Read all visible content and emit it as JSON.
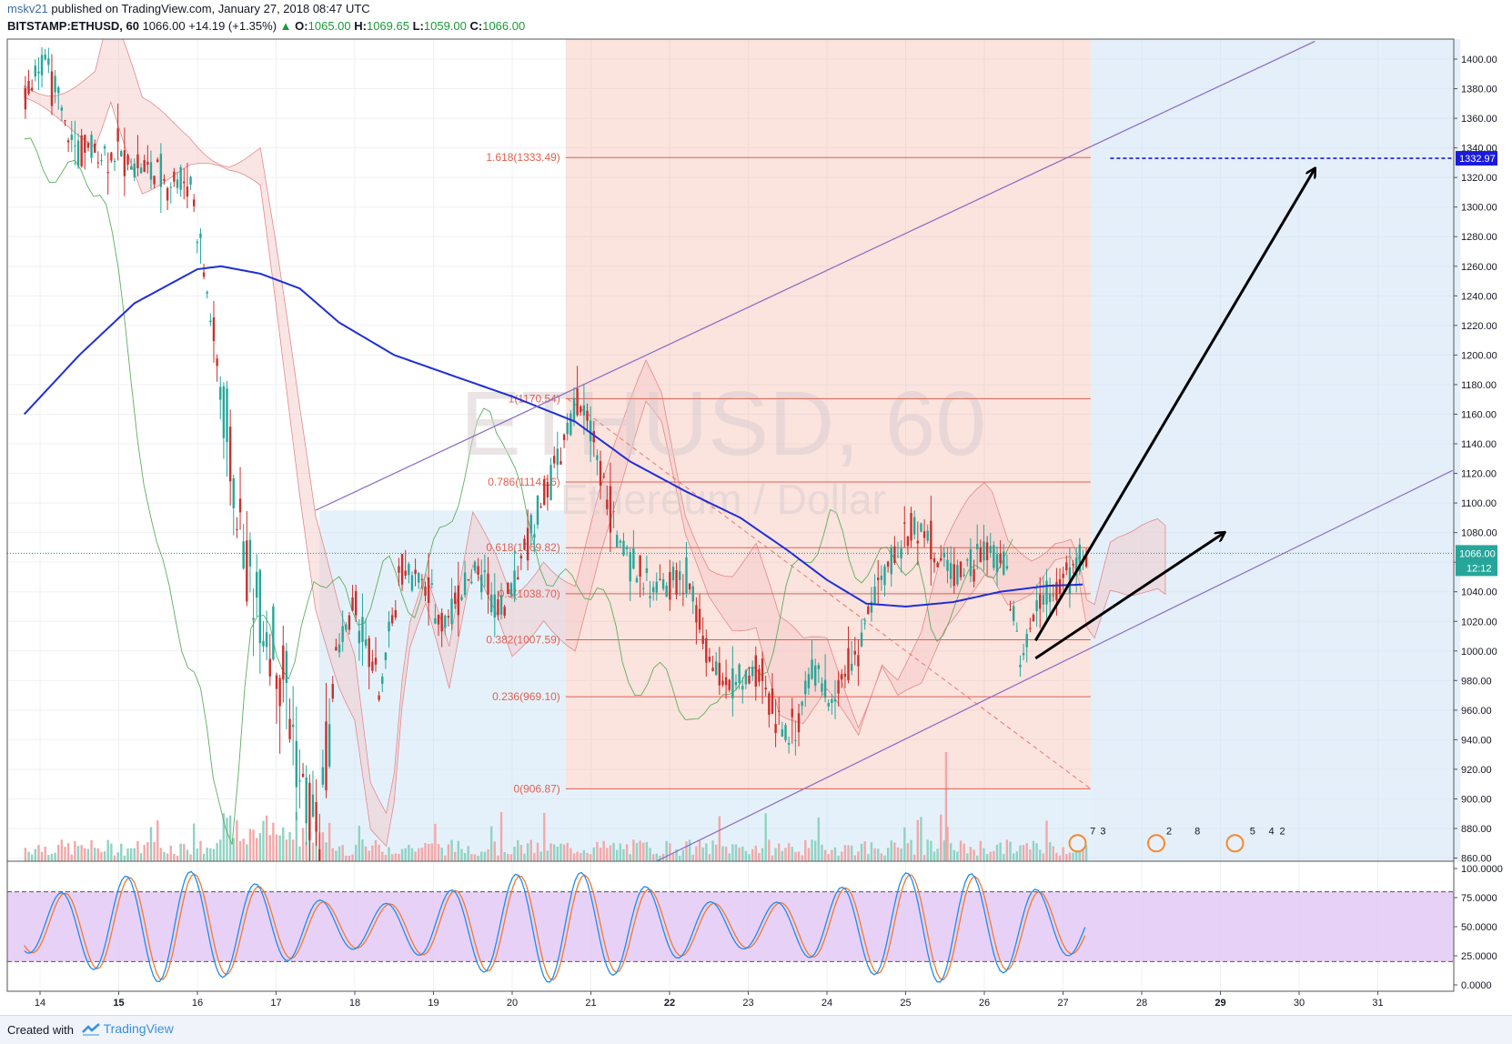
{
  "header": {
    "user": "mskv21",
    "published_text": "published on TradingView.com, January 27, 2018 08:47 UTC",
    "symbol": "BITSTAMP:ETHUSD, 60",
    "last_price": "1066.00",
    "change": "+14.19 (+1.35%)",
    "open_label": "O:",
    "open": "1065.00",
    "high_label": "H:",
    "high": "1069.65",
    "low_label": "L:",
    "low": "1059.00",
    "close_label": "C:",
    "close": "1066.00"
  },
  "watermark": {
    "line1": "ETHUSD, 60",
    "line2": "Ethereum / Dollar"
  },
  "footer": {
    "created_with": "Created with",
    "brand": "TradingView"
  },
  "colors": {
    "up": "#26a69a",
    "down": "#c9302c",
    "ma": "#1f2fd6",
    "fib": "#e06050",
    "channel": "#8c6bc2",
    "stoch_k": "#1e8cf0",
    "stoch_d": "#f07a30",
    "stoch_band": "#e4c9f5"
  },
  "chart_data": [
    {
      "type": "line",
      "title": "BITSTAMP:ETHUSD, 60",
      "x_ticks": [
        "14",
        "15",
        "16",
        "17",
        "18",
        "19",
        "20",
        "21",
        "22",
        "23",
        "24",
        "25",
        "26",
        "27",
        "28",
        "29",
        "30",
        "31"
      ],
      "y_ticks": [
        "1400.00",
        "1380.00",
        "1360.00",
        "1340.00",
        "1320.00",
        "1300.00",
        "1280.00",
        "1260.00",
        "1240.00",
        "1220.00",
        "1200.00",
        "1180.00",
        "1160.00",
        "1140.00",
        "1120.00",
        "1100.00",
        "1080.00",
        "1060.00",
        "1040.00",
        "1020.00",
        "1000.00",
        "980.00",
        "960.00",
        "940.00",
        "920.00",
        "900.00",
        "880.00",
        "860.00"
      ],
      "ylim": [
        857,
        1412
      ],
      "price_key_points": [
        {
          "day": 13.8,
          "price": 1370
        },
        {
          "day": 14.0,
          "price": 1405
        },
        {
          "day": 14.4,
          "price": 1340
        },
        {
          "day": 15.0,
          "price": 1335
        },
        {
          "day": 15.5,
          "price": 1320
        },
        {
          "day": 15.9,
          "price": 1318
        },
        {
          "day": 16.1,
          "price": 1245
        },
        {
          "day": 16.4,
          "price": 1130
        },
        {
          "day": 16.6,
          "price": 1060
        },
        {
          "day": 16.9,
          "price": 1010
        },
        {
          "day": 17.1,
          "price": 985
        },
        {
          "day": 17.3,
          "price": 905
        },
        {
          "day": 17.55,
          "price": 880
        },
        {
          "day": 17.75,
          "price": 1000
        },
        {
          "day": 18.0,
          "price": 1030
        },
        {
          "day": 18.3,
          "price": 970
        },
        {
          "day": 18.6,
          "price": 1060
        },
        {
          "day": 18.9,
          "price": 1040
        },
        {
          "day": 19.1,
          "price": 1020
        },
        {
          "day": 19.5,
          "price": 1055
        },
        {
          "day": 19.9,
          "price": 1030
        },
        {
          "day": 20.2,
          "price": 1080
        },
        {
          "day": 20.5,
          "price": 1120
        },
        {
          "day": 20.8,
          "price": 1165
        },
        {
          "day": 21.0,
          "price": 1150
        },
        {
          "day": 21.3,
          "price": 1080
        },
        {
          "day": 21.6,
          "price": 1050
        },
        {
          "day": 21.9,
          "price": 1040
        },
        {
          "day": 22.2,
          "price": 1050
        },
        {
          "day": 22.5,
          "price": 990
        },
        {
          "day": 22.8,
          "price": 975
        },
        {
          "day": 23.1,
          "price": 985
        },
        {
          "day": 23.5,
          "price": 940
        },
        {
          "day": 23.8,
          "price": 985
        },
        {
          "day": 24.0,
          "price": 970
        },
        {
          "day": 24.3,
          "price": 990
        },
        {
          "day": 24.6,
          "price": 1040
        },
        {
          "day": 24.9,
          "price": 1070
        },
        {
          "day": 25.15,
          "price": 1090
        },
        {
          "day": 25.4,
          "price": 1060
        },
        {
          "day": 25.7,
          "price": 1055
        },
        {
          "day": 26.0,
          "price": 1065
        },
        {
          "day": 26.25,
          "price": 1060
        },
        {
          "day": 26.45,
          "price": 995
        },
        {
          "day": 26.7,
          "price": 1040
        },
        {
          "day": 26.95,
          "price": 1045
        },
        {
          "day": 27.3,
          "price": 1066
        }
      ],
      "ma_key_points": [
        {
          "day": 13.8,
          "price": 1160
        },
        {
          "day": 14.5,
          "price": 1200
        },
        {
          "day": 15.2,
          "price": 1235
        },
        {
          "day": 16.0,
          "price": 1258
        },
        {
          "day": 16.3,
          "price": 1260
        },
        {
          "day": 16.8,
          "price": 1255
        },
        {
          "day": 17.3,
          "price": 1245
        },
        {
          "day": 17.8,
          "price": 1222
        },
        {
          "day": 18.5,
          "price": 1200
        },
        {
          "day": 19.3,
          "price": 1185
        },
        {
          "day": 20.0,
          "price": 1172
        },
        {
          "day": 20.8,
          "price": 1155
        },
        {
          "day": 21.5,
          "price": 1128
        },
        {
          "day": 22.2,
          "price": 1108
        },
        {
          "day": 22.9,
          "price": 1090
        },
        {
          "day": 23.5,
          "price": 1068
        },
        {
          "day": 24.0,
          "price": 1048
        },
        {
          "day": 24.5,
          "price": 1032
        },
        {
          "day": 25.0,
          "price": 1030
        },
        {
          "day": 25.6,
          "price": 1033
        },
        {
          "day": 26.2,
          "price": 1040
        },
        {
          "day": 26.8,
          "price": 1044
        },
        {
          "day": 27.3,
          "price": 1045
        }
      ],
      "fib_levels": [
        {
          "label": "1.618(1333.49)",
          "value": 1333.49
        },
        {
          "label": "1(1170.54)",
          "value": 1170.54
        },
        {
          "label": "0.786(1114.16)",
          "value": 1114.16
        },
        {
          "label": "0.618(1069.82)",
          "value": 1069.82
        },
        {
          "label": "0.5(1038.70)",
          "value": 1038.7
        },
        {
          "label": "0.382(1007.59)",
          "value": 1007.59
        },
        {
          "label": "0.236(969.10)",
          "value": 969.1
        },
        {
          "label": "0(906.87)",
          "value": 906.87
        }
      ],
      "channel_upper": [
        {
          "day": 17.5,
          "price": 1095
        },
        {
          "day": 30.2,
          "price": 1412
        }
      ],
      "channel_lower": [
        {
          "day": 21.8,
          "price": 857
        },
        {
          "day": 31.95,
          "price": 1122
        }
      ],
      "target_price": "1332.97",
      "current_price": "1066.00",
      "countdown": "12:12",
      "event_badges": [
        "7",
        "3",
        "2",
        "8",
        "5",
        "4",
        "2"
      ]
    },
    {
      "type": "line",
      "title": "",
      "y_ticks": [
        "100.0000",
        "75.0000",
        "50.0000",
        "25.0000",
        "0.0000"
      ],
      "ylim": [
        -8,
        103
      ],
      "overbought": 80,
      "oversold": 20
    }
  ]
}
